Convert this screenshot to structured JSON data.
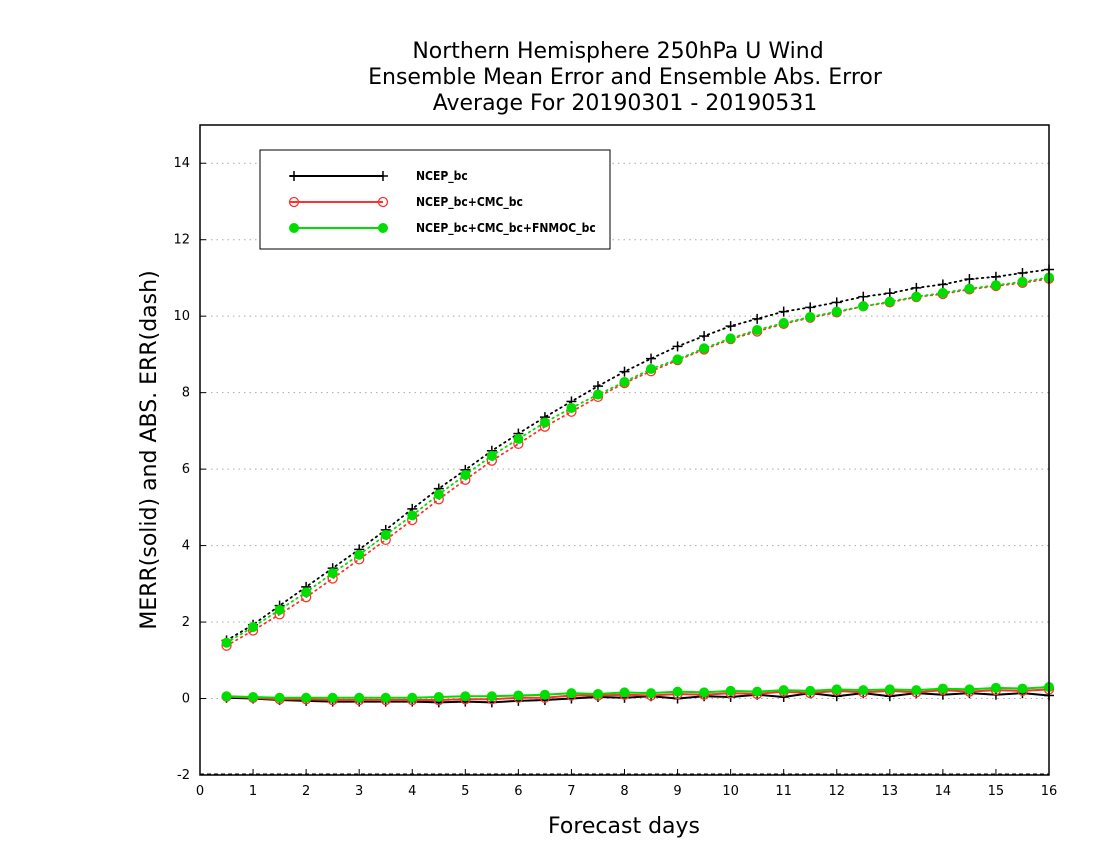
{
  "chart_data": {
    "type": "line",
    "title": [
      "Northern Hemisphere 250hPa U Wind",
      "Ensemble Mean Error and Ensemble Abs. Error",
      "Average For 20190301 - 20190531"
    ],
    "xlabel": "Forecast days",
    "ylabel": "MERR(solid) and ABS. ERR(dash)",
    "xlim": [
      0,
      16
    ],
    "ylim": [
      -2,
      15
    ],
    "xticks": [
      0,
      1,
      2,
      3,
      4,
      5,
      6,
      7,
      8,
      9,
      10,
      11,
      12,
      13,
      14,
      15,
      16
    ],
    "yticks": [
      -2,
      0,
      2,
      4,
      6,
      8,
      10,
      12,
      14
    ],
    "grid": "horizontal dotted",
    "legend_position": "top-left",
    "x": [
      0.5,
      1,
      1.5,
      2,
      2.5,
      3,
      3.5,
      4,
      4.5,
      5,
      5.5,
      6,
      6.5,
      7,
      7.5,
      8,
      8.5,
      9,
      9.5,
      10,
      10.5,
      11,
      11.5,
      12,
      12.5,
      13,
      13.5,
      14,
      14.5,
      15,
      15.5,
      16
    ],
    "series": [
      {
        "name": "NCEP_bc",
        "color": "#000000",
        "marker": "plus",
        "abs_err": [
          1.52,
          1.93,
          2.43,
          2.92,
          3.41,
          3.9,
          4.41,
          4.96,
          5.49,
          5.98,
          6.48,
          6.93,
          7.36,
          7.77,
          8.17,
          8.55,
          8.89,
          9.21,
          9.48,
          9.74,
          9.93,
          10.12,
          10.23,
          10.36,
          10.51,
          10.6,
          10.74,
          10.83,
          10.97,
          11.03,
          11.13,
          11.22
        ],
        "mean_err": [
          0.02,
          0.0,
          -0.04,
          -0.06,
          -0.08,
          -0.08,
          -0.08,
          -0.08,
          -0.1,
          -0.08,
          -0.1,
          -0.06,
          -0.04,
          0.0,
          0.04,
          0.02,
          0.06,
          0.0,
          0.06,
          0.04,
          0.1,
          0.04,
          0.14,
          0.06,
          0.14,
          0.06,
          0.14,
          0.1,
          0.14,
          0.1,
          0.14,
          0.08
        ]
      },
      {
        "name": "NCEP_bc+CMC_bc",
        "color": "#ff3030",
        "marker": "open-circle",
        "abs_err": [
          1.38,
          1.78,
          2.2,
          2.65,
          3.14,
          3.64,
          4.15,
          4.67,
          5.21,
          5.72,
          6.22,
          6.66,
          7.11,
          7.5,
          7.89,
          8.25,
          8.56,
          8.85,
          9.13,
          9.4,
          9.6,
          9.8,
          9.96,
          10.1,
          10.26,
          10.36,
          10.5,
          10.58,
          10.7,
          10.79,
          10.87,
          10.98
        ],
        "mean_err": [
          0.05,
          0.02,
          -0.02,
          -0.02,
          -0.04,
          -0.04,
          -0.04,
          -0.04,
          -0.04,
          -0.02,
          -0.02,
          0.02,
          0.02,
          0.08,
          0.08,
          0.1,
          0.08,
          0.12,
          0.1,
          0.14,
          0.12,
          0.18,
          0.14,
          0.2,
          0.16,
          0.2,
          0.16,
          0.22,
          0.18,
          0.22,
          0.2,
          0.24
        ]
      },
      {
        "name": "NCEP_bc+CMC_bc+FNMOC_bc",
        "color": "#00dd00",
        "marker": "filled-circle",
        "abs_err": [
          1.46,
          1.87,
          2.32,
          2.78,
          3.28,
          3.76,
          4.28,
          4.79,
          5.34,
          5.85,
          6.35,
          6.79,
          7.22,
          7.6,
          7.95,
          8.28,
          8.62,
          8.87,
          9.16,
          9.42,
          9.64,
          9.82,
          9.98,
          10.12,
          10.26,
          10.38,
          10.51,
          10.61,
          10.72,
          10.81,
          10.9,
          11.01
        ],
        "mean_err": [
          0.06,
          0.04,
          0.02,
          0.02,
          0.02,
          0.02,
          0.02,
          0.02,
          0.04,
          0.06,
          0.06,
          0.08,
          0.1,
          0.14,
          0.12,
          0.16,
          0.14,
          0.18,
          0.16,
          0.2,
          0.18,
          0.22,
          0.2,
          0.24,
          0.22,
          0.24,
          0.22,
          0.26,
          0.24,
          0.28,
          0.26,
          0.3
        ]
      }
    ]
  }
}
